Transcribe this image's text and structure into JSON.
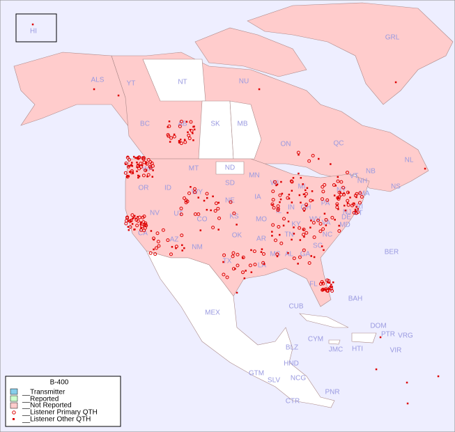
{
  "title": "B-400",
  "legend": [
    "__Transmitter",
    "__Reported",
    "__Not Reported",
    "__Listener Primary QTH",
    "__Listener Other QTH"
  ],
  "regions": [
    "HI",
    "ALS",
    "YT",
    "NT",
    "NU",
    "GRL",
    "BC",
    "AB",
    "SK",
    "MB",
    "ON",
    "QC",
    "NL",
    "NB",
    "NS",
    "WA",
    "MT",
    "ND",
    "MN",
    "WI",
    "MI",
    "OR",
    "ID",
    "WY",
    "SD",
    "IA",
    "IL",
    "IN",
    "OH",
    "PA",
    "NY",
    "VT",
    "NH",
    "MA",
    "CT",
    "RI",
    "NJ",
    "DE",
    "MD",
    "NE",
    "NV",
    "UT",
    "CO",
    "KS",
    "MO",
    "KY",
    "WV",
    "VA",
    "CA",
    "AZ",
    "NM",
    "OK",
    "AR",
    "TN",
    "NC",
    "TX",
    "LA",
    "MS",
    "AL",
    "GA",
    "SC",
    "FL",
    "BER",
    "BAH",
    "MEX",
    "CUB",
    "DOM",
    "PTR",
    "VRG",
    "CYM",
    "JMC",
    "HTI",
    "VIR",
    "BLZ",
    "HND",
    "GTM",
    "SLV",
    "NCG",
    "CTR",
    "PNR"
  ]
}
